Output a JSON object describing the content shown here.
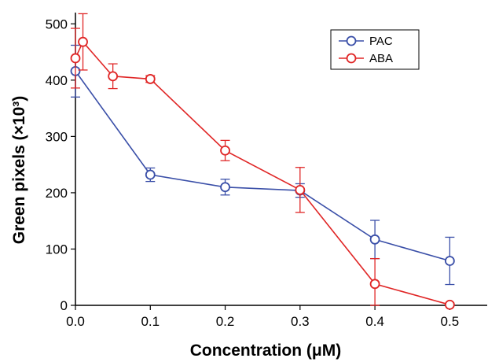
{
  "chart_data": {
    "type": "line",
    "title": "",
    "xlabel": "Concentration (μM)",
    "ylabel": "Green pixels (×10³)",
    "xlim": [
      0,
      0.55
    ],
    "ylim": [
      0,
      520
    ],
    "xticks": [
      "0.0",
      "0.1",
      "0.2",
      "0.3",
      "0.4",
      "0.5"
    ],
    "yticks": [
      "0",
      "100",
      "200",
      "300",
      "400",
      "500"
    ],
    "grid": false,
    "legend_position": "top-right",
    "series": [
      {
        "name": "PAC",
        "color": "#3a4fa8",
        "x": [
          0,
          0.1,
          0.2,
          0.3,
          0.4,
          0.5
        ],
        "y": [
          416,
          232,
          210,
          204,
          117,
          79
        ],
        "err": [
          46,
          12,
          14,
          12,
          34,
          42
        ]
      },
      {
        "name": "ABA",
        "color": "#e02626",
        "x": [
          0,
          0.01,
          0.05,
          0.1,
          0.2,
          0.3,
          0.4,
          0.5
        ],
        "y": [
          439,
          468,
          407,
          402,
          275,
          205,
          38,
          1
        ],
        "err": [
          53,
          50,
          22,
          6,
          18,
          40,
          45,
          3
        ]
      }
    ]
  }
}
